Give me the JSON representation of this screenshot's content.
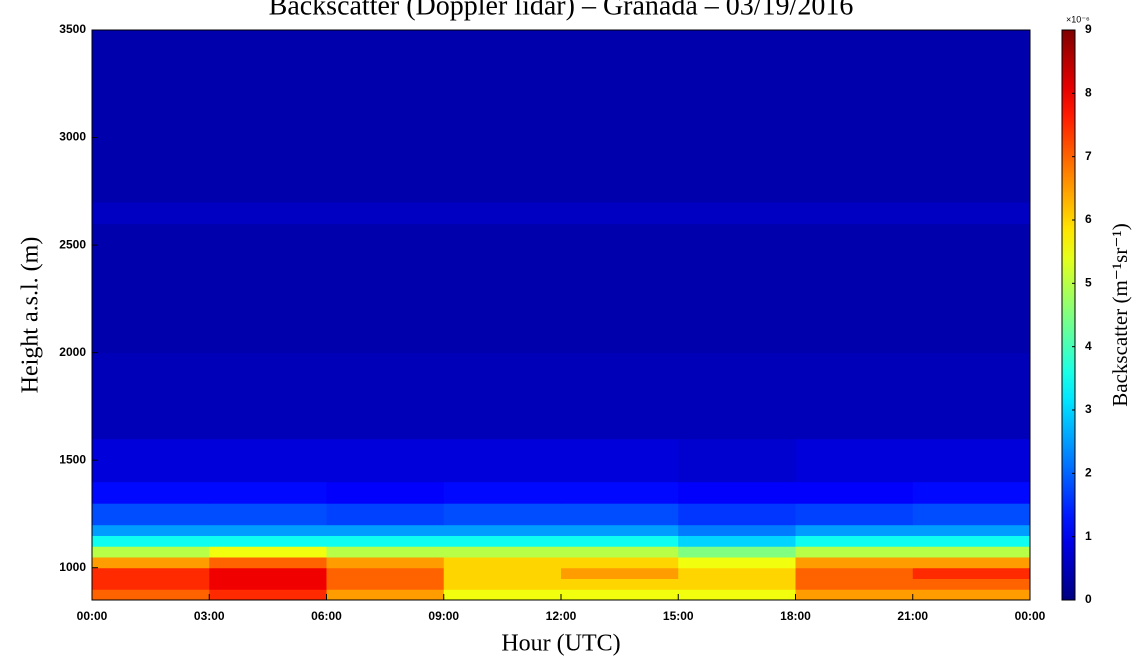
{
  "chart_data": {
    "type": "heatmap",
    "title": "Backscatter (Doppler lidar) – Granada – 03/19/2016",
    "x_label": "Hour (UTC)",
    "y_label": "Height a.s.l. (m)",
    "colorbar_label": "Backscatter (m⁻¹sr⁻¹)",
    "colorbar_multiplier": "×10⁻⁶",
    "colormap": "jet",
    "x_edges": [
      0,
      3,
      6,
      9,
      12,
      15,
      18,
      21,
      24
    ],
    "y_edges": [
      850,
      900,
      950,
      1000,
      1050,
      1100,
      1150,
      1200,
      1300,
      1400,
      1600,
      2000,
      2600,
      2700,
      3500
    ],
    "z": [
      [
        7,
        7.5,
        6.5,
        5.5,
        5.5,
        5.5,
        6.5,
        6.5
      ],
      [
        7.5,
        8,
        7,
        6,
        6,
        6,
        7,
        7
      ],
      [
        7.5,
        8,
        7,
        6,
        6.5,
        6,
        7,
        7.5
      ],
      [
        6.5,
        7,
        6.5,
        6,
        6,
        5.5,
        6.5,
        6.5
      ],
      [
        5,
        5.5,
        5,
        5,
        5,
        4.5,
        5,
        5
      ],
      [
        3.5,
        3.5,
        3.5,
        3.5,
        3.5,
        3,
        3.5,
        3.5
      ],
      [
        2.5,
        2.5,
        2.5,
        2.5,
        2.5,
        2.2,
        2.5,
        2.5
      ],
      [
        1.8,
        1.8,
        1.7,
        1.8,
        1.8,
        1.6,
        1.7,
        1.8
      ],
      [
        1.2,
        1.2,
        1.1,
        1.2,
        1.2,
        1.1,
        1.1,
        1.2
      ],
      [
        0.8,
        0.8,
        0.8,
        0.8,
        0.8,
        0.7,
        0.8,
        0.8
      ],
      [
        0.5,
        0.5,
        0.5,
        0.5,
        0.5,
        0.5,
        0.5,
        0.5
      ],
      [
        0.4,
        0.4,
        0.4,
        0.4,
        0.4,
        0.4,
        0.4,
        0.4
      ],
      [
        0.6,
        0.6,
        0.6,
        0.6,
        0.6,
        0.6,
        0.6,
        0.6
      ],
      [
        0.4,
        0.4,
        0.4,
        0.4,
        0.4,
        0.4,
        0.4,
        0.4
      ]
    ],
    "xlim": [
      0,
      24
    ],
    "xticks": [
      {
        "value": 0,
        "label": "00:00"
      },
      {
        "value": 3,
        "label": "03:00"
      },
      {
        "value": 6,
        "label": "06:00"
      },
      {
        "value": 9,
        "label": "09:00"
      },
      {
        "value": 12,
        "label": "12:00"
      },
      {
        "value": 15,
        "label": "15:00"
      },
      {
        "value": 18,
        "label": "18:00"
      },
      {
        "value": 21,
        "label": "21:00"
      },
      {
        "value": 24,
        "label": "00:00"
      }
    ],
    "ylim": [
      850,
      3500
    ],
    "yticks": [
      1000,
      1500,
      2000,
      2500,
      3000,
      3500
    ],
    "zlim": [
      0,
      9
    ],
    "zticks": [
      0,
      1,
      2,
      3,
      4,
      5,
      6,
      7,
      8,
      9
    ]
  }
}
